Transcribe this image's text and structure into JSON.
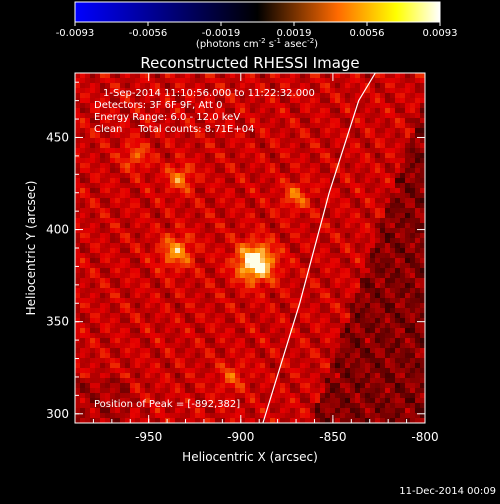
{
  "colorbar": {
    "tick_labels": [
      "-0.0093",
      "-0.0056",
      "-0.0019",
      "0.0019",
      "0.0056",
      "0.0093"
    ],
    "units_base": "(photons cm",
    "units_sup1": "-2",
    "units_mid": " s",
    "units_sup2": "-1",
    "units_mid2": " asec",
    "units_sup3": "-2",
    "units_end": ")",
    "gradient_colors": [
      "#0000ff",
      "#000000",
      "#ff6a00",
      "#ffff00",
      "#ffffff"
    ]
  },
  "title": "Reconstructed RHESSI Image",
  "annotations": {
    "time_range": "1-Sep-2014 11:10:56.000 to 11:22:32.000",
    "detectors": "Detectors: 3F 6F 9F, Att 0",
    "energy": "Energy Range: 6.0 - 12.0 keV",
    "clean": "Clean     Total counts: 8.71E+04",
    "peak": "Position of Peak = [-892,382]"
  },
  "chart_data": {
    "type": "heatmap",
    "title": "Reconstructed RHESSI Image",
    "xlabel": "Heliocentric X (arcsec)",
    "ylabel": "Heliocentric Y (arcsec)",
    "xlim": [
      -990,
      -800
    ],
    "ylim": [
      295,
      485
    ],
    "x_ticks": [
      -950,
      -900,
      -850,
      -800
    ],
    "x_tick_labels": [
      "-950",
      "-900",
      "-850",
      "-800"
    ],
    "y_ticks": [
      300,
      350,
      400,
      450
    ],
    "y_tick_labels": [
      "300",
      "350",
      "400",
      "450"
    ],
    "colorbar_range": [
      -0.0093,
      0.0093
    ],
    "peak": {
      "x": -892,
      "y": 382
    },
    "sources": [
      {
        "x": -892,
        "y": 382,
        "intensity": 1.0,
        "sigma": 7
      },
      {
        "x": -935,
        "y": 388,
        "intensity": 0.55,
        "sigma": 6
      },
      {
        "x": -933,
        "y": 428,
        "intensity": 0.45,
        "sigma": 5
      },
      {
        "x": -870,
        "y": 418,
        "intensity": 0.4,
        "sigma": 5
      },
      {
        "x": -957,
        "y": 440,
        "intensity": 0.35,
        "sigma": 5
      },
      {
        "x": -905,
        "y": 320,
        "intensity": 0.3,
        "sigma": 5
      }
    ],
    "limb": [
      [
        -888,
        295
      ],
      [
        -868,
        360
      ],
      [
        -852,
        420
      ],
      [
        -836,
        470
      ],
      [
        -827,
        485
      ]
    ],
    "grid": false
  },
  "timestamp": "11-Dec-2014 00:09"
}
